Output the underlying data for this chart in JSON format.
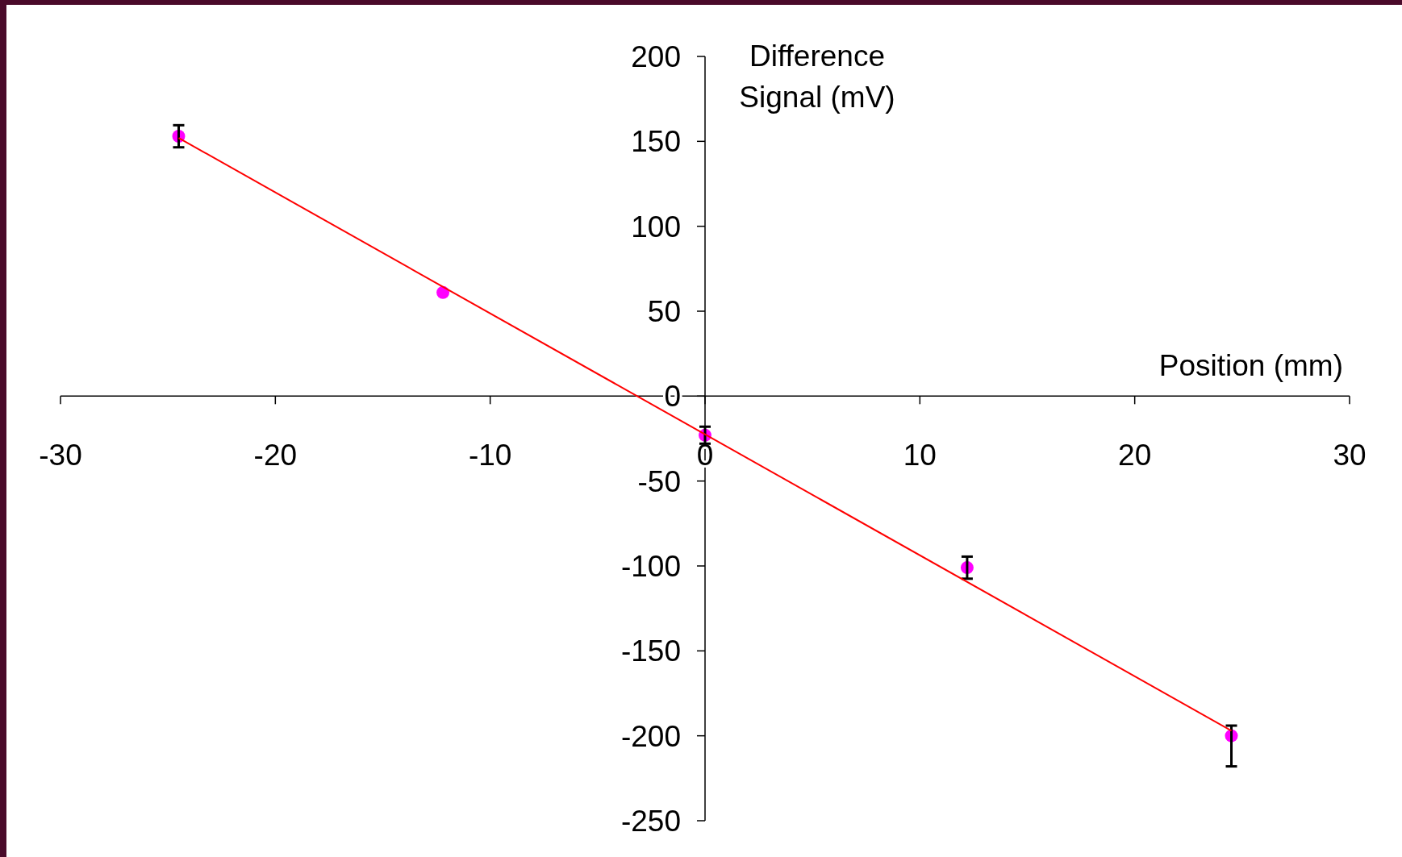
{
  "chart_data": {
    "type": "scatter",
    "xlabel": "Position (mm)",
    "ylabel": "Difference Signal (mV)",
    "xlim": [
      -30,
      30
    ],
    "xticks": [
      -30,
      -20,
      -10,
      0,
      10,
      20,
      30
    ],
    "ylim": [
      -250,
      200
    ],
    "yticks": [
      -250,
      -200,
      -150,
      -100,
      -50,
      0,
      50,
      100,
      150,
      200
    ],
    "grid": false,
    "series": [
      {
        "color": "#ff00ff",
        "marker": "circle",
        "x": [
          -24.5,
          -12.2,
          0,
          12.2,
          24.5
        ],
        "values": [
          153,
          61,
          -23,
          -101,
          -200
        ],
        "errors": [
          6.5,
          null,
          5,
          6.5,
          [
            -218,
            -194
          ]
        ]
      },
      {
        "type": "line",
        "color": "#ff0000",
        "marker": "none",
        "line_style": "solid",
        "x": [
          -24.5,
          24.5
        ],
        "values": [
          152,
          -197
        ]
      }
    ]
  }
}
